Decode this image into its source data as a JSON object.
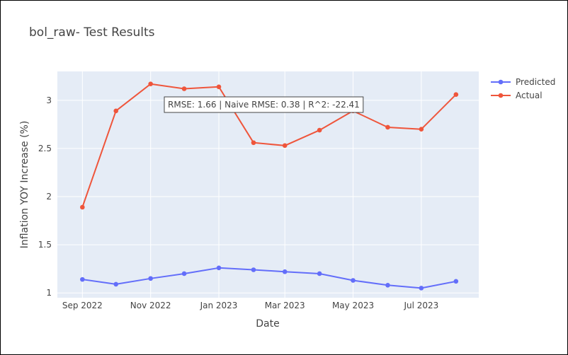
{
  "chart_data": {
    "type": "line",
    "title": "bol_raw- Test Results",
    "xlabel": "Date",
    "ylabel": "Inflation YOY Increase (%)",
    "x": [
      "2022-09-01",
      "2022-10-01",
      "2022-11-01",
      "2022-12-01",
      "2023-01-01",
      "2023-02-01",
      "2023-03-01",
      "2023-04-01",
      "2023-05-01",
      "2023-06-01",
      "2023-07-01",
      "2023-08-01"
    ],
    "x_tick_labels": [
      "Sep 2022",
      "Nov 2022",
      "Jan 2023",
      "Mar 2023",
      "May 2023",
      "Jul 2023"
    ],
    "y_tick_labels": [
      "1",
      "1.5",
      "2",
      "2.5",
      "3"
    ],
    "y_ticks": [
      1,
      1.5,
      2,
      2.5,
      3
    ],
    "ylim": [
      0.95,
      3.3
    ],
    "grid": true,
    "legend_position": "top-right",
    "series": [
      {
        "name": "Predicted",
        "color": "#636efa",
        "values": [
          1.14,
          1.09,
          1.15,
          1.2,
          1.26,
          1.24,
          1.22,
          1.2,
          1.13,
          1.08,
          1.05,
          1.12
        ]
      },
      {
        "name": "Actual",
        "color": "#ef553b",
        "values": [
          1.89,
          2.89,
          3.17,
          3.12,
          3.14,
          2.56,
          2.53,
          2.69,
          2.89,
          2.72,
          2.7,
          3.06
        ]
      }
    ],
    "annotation": "RMSE: 1.66 | Naive RMSE: 0.38 | R^2: -22.41"
  }
}
